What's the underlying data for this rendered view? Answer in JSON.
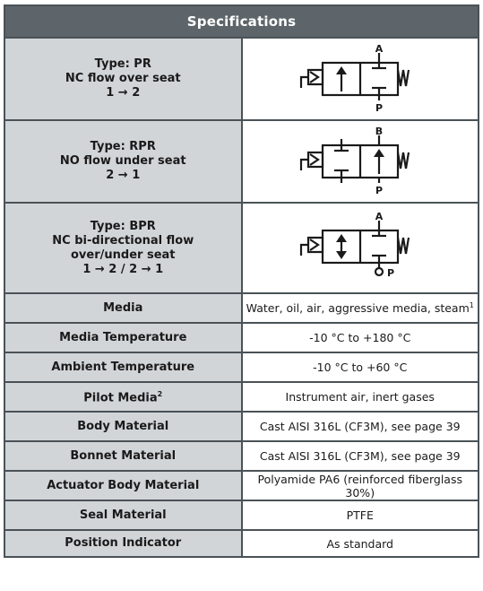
{
  "header": {
    "title": "Specifications"
  },
  "types": [
    {
      "lines": [
        "Type: PR",
        "NC flow over seat",
        "1 → 2"
      ],
      "symbol": {
        "top_port": "A",
        "bottom_port": "P"
      }
    },
    {
      "lines": [
        "Type: RPR",
        "NO flow under seat",
        "2 → 1"
      ],
      "symbol": {
        "top_port": "B",
        "bottom_port": "P"
      }
    },
    {
      "lines": [
        "Type: BPR",
        "NC bi-directional flow",
        "over/under seat",
        "1 → 2 / 2 → 1"
      ],
      "symbol": {
        "top_port": "A",
        "bottom_port": "P"
      }
    }
  ],
  "specs": [
    {
      "label": "Media",
      "label_sup": "",
      "value": "Water, oil, air, aggressive media, steam",
      "value_sup": "1"
    },
    {
      "label": "Media Temperature",
      "label_sup": "",
      "value": "-10 °C to +180 °C",
      "value_sup": ""
    },
    {
      "label": "Ambient Temperature",
      "label_sup": "",
      "value": "-10 °C to +60 °C",
      "value_sup": ""
    },
    {
      "label": "Pilot Media",
      "label_sup": "2",
      "value": "Instrument air, inert gases",
      "value_sup": ""
    },
    {
      "label": "Body Material",
      "label_sup": "",
      "value": "Cast AISI 316L (CF3M), see page 39",
      "value_sup": ""
    },
    {
      "label": "Bonnet Material",
      "label_sup": "",
      "value": "Cast AISI 316L (CF3M), see page 39",
      "value_sup": ""
    },
    {
      "label": "Actuator Body Material",
      "label_sup": "",
      "value": "Polyamide PA6 (reinforced fiberglass 30%)",
      "value_sup": ""
    },
    {
      "label": "Seal Material",
      "label_sup": "",
      "value": "PTFE",
      "value_sup": ""
    },
    {
      "label": "Position Indicator",
      "label_sup": "",
      "value": "As standard",
      "value_sup": ""
    }
  ]
}
